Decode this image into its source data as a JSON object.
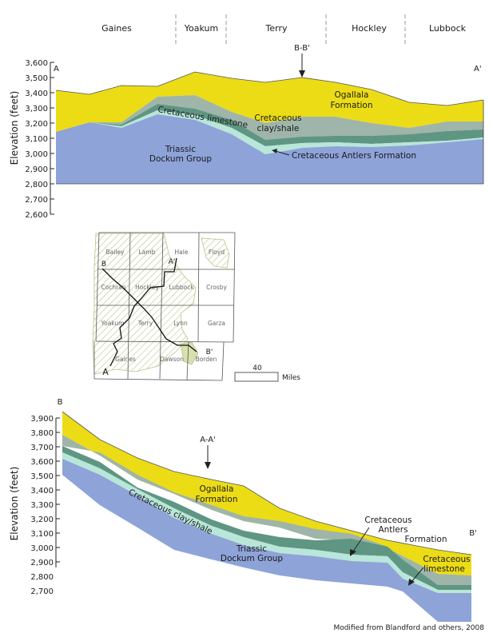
{
  "counties_header": [
    "Gaines",
    "Yoakum",
    "Terry",
    "Hockley",
    "Lubbock"
  ],
  "section1": {
    "end_left": "A",
    "end_right": "A'",
    "ylabel": "Elevation (feet)",
    "yticks": [
      "3,600",
      "3,500",
      "3,400",
      "3,300",
      "3,200",
      "3,100",
      "3,000",
      "2,900",
      "2,800",
      "2,700",
      "2,600"
    ],
    "marker": "B-B'",
    "ogallala_1": "Ogallala",
    "ogallala_2": "Formation",
    "cret_clay_1": "Cretaceous",
    "cret_clay_2": "clay/shale",
    "cret_limestone": "Cretaceous limestone",
    "triassic_1": "Triassic",
    "triassic_2": "Dockum Group",
    "antlers": "Cretaceous Antlers Formation"
  },
  "map": {
    "counties": [
      "Bailey",
      "Lamb",
      "Hale",
      "Floyd",
      "Cochran",
      "Hockley",
      "Lubbock",
      "Crosby",
      "Yoakum",
      "Terry",
      "Lynn",
      "Garza",
      "Gaines",
      "Dawson",
      "Borden"
    ],
    "line_a": "A",
    "line_a_prime": "A'",
    "line_b": "B",
    "line_b_prime": "B'",
    "scale_value": "40",
    "scale_unit": "Miles"
  },
  "section2": {
    "end_left": "B",
    "end_right": "B'",
    "ylabel": "Elevation (feet)",
    "yticks": [
      "3,900",
      "3,800",
      "3,700",
      "3,600",
      "3,500",
      "3,400",
      "3,300",
      "3,200",
      "3,100",
      "3,000",
      "2,900",
      "2,800",
      "2,700"
    ],
    "marker": "A-A'",
    "ogallala_1": "Ogallala",
    "ogallala_2": "Formation",
    "cret_clay": "Cretaceous clay/shale",
    "triassic_1": "Triassic",
    "triassic_2": "Dockum Group",
    "antlers_1": "Cretaceous",
    "antlers_2": "Antlers",
    "antlers_3": "Formation",
    "limestone_1": "Cretaceous",
    "limestone_2": "limestone"
  },
  "credit": "Modified from Blandford and others, 2008",
  "colors": {
    "ogallala": "#ecdc16",
    "clay_shale": "#9fb5a9",
    "limestone": "#5f9683",
    "antlers": "#b8e6d8",
    "triassic": "#8ea3d8",
    "hatch": "#b5c488"
  }
}
